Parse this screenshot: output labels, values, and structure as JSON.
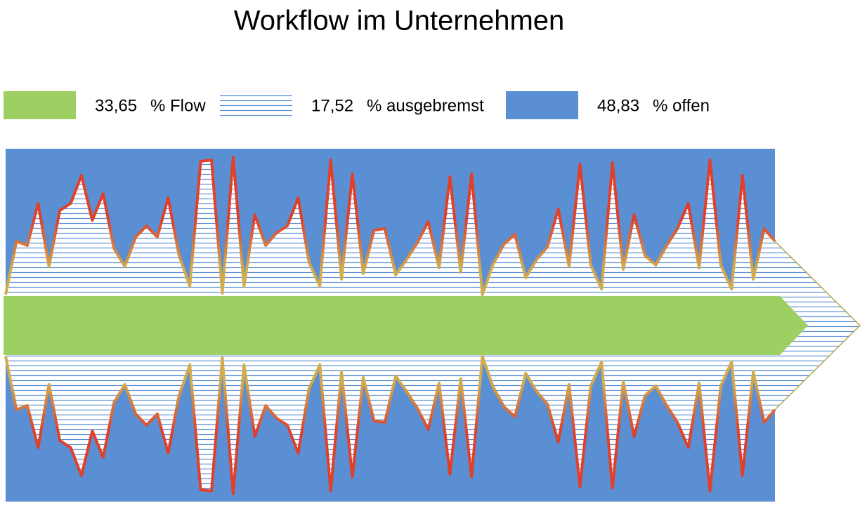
{
  "title": "Workflow im Unternehmen",
  "legend": [
    {
      "value": "33,65",
      "label": "% Flow",
      "color": "#9dcf62",
      "style": "solid"
    },
    {
      "value": "17,52",
      "label": "% ausgebremst",
      "color": "#5b8fd3",
      "style": "hatch"
    },
    {
      "value": "48,83",
      "label": "% offen",
      "color": "#5b8fd3",
      "style": "solid"
    }
  ],
  "profile": {
    "values": [
      1,
      39,
      36,
      66,
      21,
      61,
      66,
      86,
      54,
      73,
      34,
      21,
      42,
      50,
      42,
      70,
      29,
      7,
      96,
      97,
      2,
      99,
      7,
      58,
      36,
      45,
      50,
      70,
      24,
      7,
      97,
      12,
      87,
      16,
      47,
      48,
      15,
      26,
      38,
      53,
      20,
      85,
      17,
      87,
      1,
      23,
      37,
      44,
      13,
      26,
      35,
      62,
      21,
      94,
      22,
      5,
      95,
      19,
      58,
      29,
      22,
      36,
      48,
      66,
      20,
      97,
      22,
      5,
      86,
      12,
      48,
      39
    ],
    "color_low": "#d2ac4c",
    "color_high": "#e0402a"
  }
}
